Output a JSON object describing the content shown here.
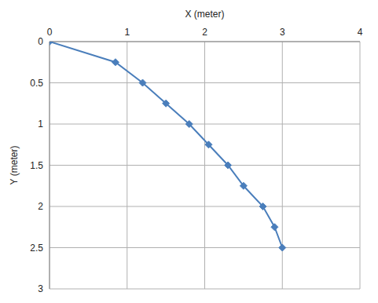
{
  "chart_data": {
    "type": "line",
    "xlabel": "X (meter)",
    "ylabel": "Y (meter)",
    "x": [
      0,
      0.85,
      1.2,
      1.5,
      1.8,
      2.05,
      2.3,
      2.5,
      2.75,
      2.9,
      3.0
    ],
    "values": [
      0,
      0.25,
      0.5,
      0.75,
      1.0,
      1.25,
      1.5,
      1.75,
      2.0,
      2.25,
      2.5
    ],
    "color": "#4a7ebb",
    "marker": "diamond",
    "xlim": [
      0,
      4
    ],
    "xticks": [
      0,
      1,
      2,
      3,
      4
    ],
    "ylim": [
      0,
      3
    ],
    "yticks": [
      0,
      0.5,
      1,
      1.5,
      2,
      2.5,
      3
    ],
    "grid": true
  }
}
